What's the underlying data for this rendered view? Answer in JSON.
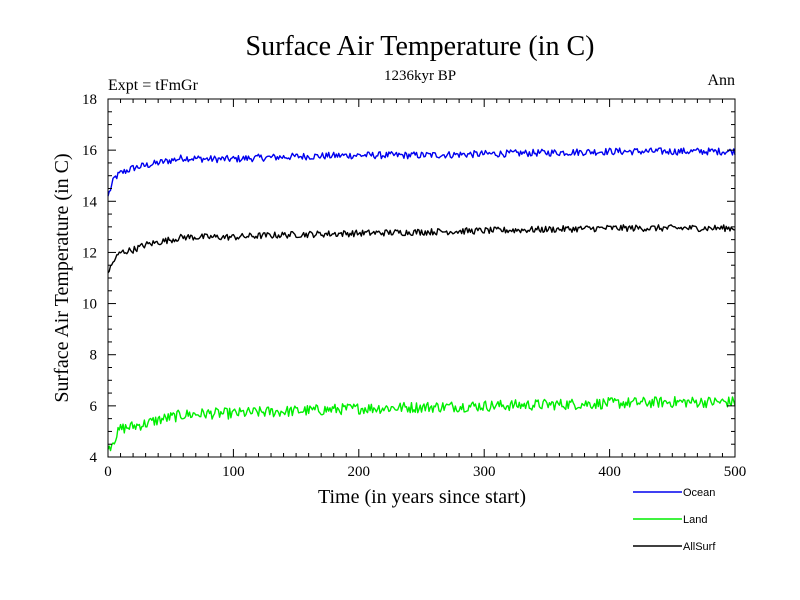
{
  "chart_data": {
    "type": "line",
    "title": "Surface Air Temperature (in C)",
    "subtitle": "1236kyr BP",
    "left_label": "Expt = tFmGr",
    "right_label": "Ann",
    "xlabel": "Time (in years since start)",
    "ylabel": "Surface Air Temperature (in C)",
    "xlim": [
      0,
      500
    ],
    "ylim": [
      4,
      18
    ],
    "x_ticks": [
      0,
      100,
      200,
      300,
      400,
      500
    ],
    "y_ticks": [
      4,
      6,
      8,
      10,
      12,
      14,
      16,
      18
    ],
    "x_tick_labels": [
      "0",
      "100",
      "200",
      "300",
      "400",
      "500"
    ],
    "y_tick_labels": [
      "4",
      "6",
      "8",
      "10",
      "12",
      "14",
      "16",
      "18"
    ],
    "grid": false,
    "legend_position": "bottom-right",
    "series": [
      {
        "name": "Ocean",
        "color": "#0000ee",
        "x": [
          0,
          5,
          10,
          20,
          30,
          40,
          50,
          60,
          80,
          100,
          120,
          150,
          200,
          250,
          300,
          350,
          400,
          450,
          500
        ],
        "values": [
          14.2,
          14.9,
          15.1,
          15.3,
          15.4,
          15.5,
          15.6,
          15.7,
          15.65,
          15.65,
          15.7,
          15.75,
          15.8,
          15.8,
          15.85,
          15.9,
          15.95,
          15.95,
          15.95
        ]
      },
      {
        "name": "Land",
        "color": "#00ee00",
        "x": [
          0,
          5,
          10,
          20,
          30,
          40,
          50,
          60,
          80,
          100,
          120,
          150,
          200,
          250,
          300,
          350,
          400,
          450,
          500
        ],
        "values": [
          4.3,
          4.7,
          5.1,
          5.2,
          5.3,
          5.45,
          5.55,
          5.65,
          5.7,
          5.7,
          5.75,
          5.8,
          5.9,
          5.95,
          6.0,
          6.05,
          6.1,
          6.15,
          6.15
        ]
      },
      {
        "name": "AllSurf",
        "color": "#000000",
        "x": [
          0,
          5,
          10,
          20,
          30,
          40,
          50,
          60,
          80,
          100,
          120,
          150,
          200,
          250,
          300,
          350,
          400,
          450,
          500
        ],
        "values": [
          11.2,
          11.7,
          12.0,
          12.1,
          12.3,
          12.4,
          12.5,
          12.6,
          12.6,
          12.6,
          12.65,
          12.7,
          12.75,
          12.8,
          12.85,
          12.9,
          12.95,
          12.95,
          12.95
        ]
      }
    ]
  }
}
